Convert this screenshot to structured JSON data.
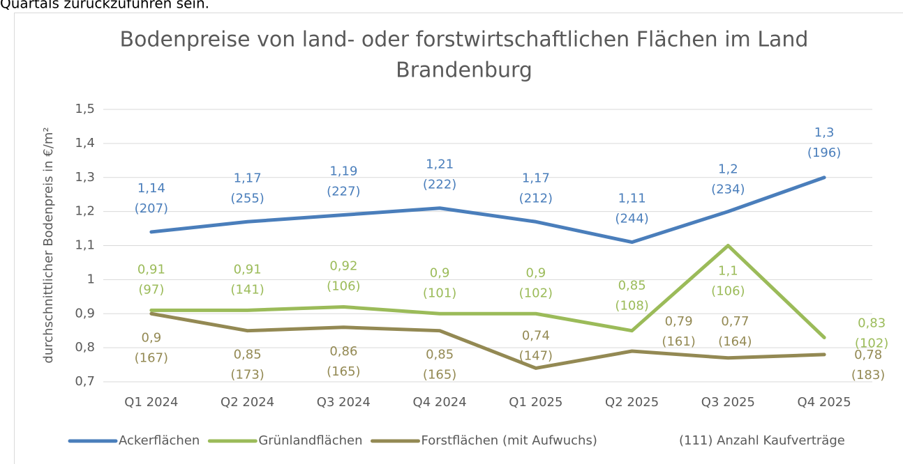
{
  "header_text": "Quartals zurückzuführen sein.",
  "chart_data": {
    "type": "line",
    "title_lines": [
      "Bodenpreise von land- oder forstwirtschaftlichen Flächen im Land",
      "Brandenburg"
    ],
    "y_label": "durchschnittlicher Bodenpreis in €/m²",
    "categories": [
      "Q1 2024",
      "Q2 2024",
      "Q3 2024",
      "Q4 2024",
      "Q1 2025",
      "Q2 2025",
      "Q3 2025",
      "Q4 2025"
    ],
    "series": [
      {
        "name": "Ackerflächen",
        "color": "#4a7ebb",
        "values": [
          1.14,
          1.17,
          1.19,
          1.21,
          1.17,
          1.11,
          1.2,
          1.3
        ],
        "value_labels": [
          "1,14",
          "1,17",
          "1,19",
          "1,21",
          "1,17",
          "1,11",
          "1,2",
          "1,3"
        ],
        "count_labels": [
          "(207)",
          "(255)",
          "(227)",
          "(222)",
          "(212)",
          "(244)",
          "(234)",
          "(196)"
        ]
      },
      {
        "name": "Grünlandflächen",
        "color": "#9bbb59",
        "values": [
          0.91,
          0.91,
          0.92,
          0.9,
          0.9,
          0.85,
          1.1,
          0.83
        ],
        "value_labels": [
          "0,91",
          "0,91",
          "0,92",
          "0,9",
          "0,9",
          "0,85",
          "1,1",
          "0,83"
        ],
        "count_labels": [
          "(97)",
          "(141)",
          "(106)",
          "(101)",
          "(102)",
          "(108)",
          "(106)",
          "(102)"
        ]
      },
      {
        "name": "Forstflächen (mit Aufwuchs)",
        "color": "#938953",
        "values": [
          0.9,
          0.85,
          0.86,
          0.85,
          0.74,
          0.79,
          0.77,
          0.78
        ],
        "value_labels": [
          "0,9",
          "0,85",
          "0,86",
          "0,85",
          "0,74",
          "0,79",
          "0,77",
          "0,78"
        ],
        "count_labels": [
          "(167)",
          "(173)",
          "(165)",
          "(165)",
          "(147)",
          "(161)",
          "(164)",
          "(183)"
        ]
      }
    ],
    "legend_note": "(111) Anzahl Kaufverträge",
    "ylim": [
      0.7,
      1.5
    ],
    "yticks": [
      {
        "value": 0.7,
        "label": "0,7"
      },
      {
        "value": 0.8,
        "label": "0,8"
      },
      {
        "value": 0.9,
        "label": "0,9"
      },
      1,
      {
        "value": 1.1,
        "label": "1,1"
      },
      {
        "value": 1.2,
        "label": "1,2"
      },
      {
        "value": 1.3,
        "label": "1,3"
      },
      {
        "value": 1.4,
        "label": "1,4"
      },
      {
        "value": 1.5,
        "label": "1,5"
      }
    ],
    "grid": true,
    "legend": "bottom"
  }
}
